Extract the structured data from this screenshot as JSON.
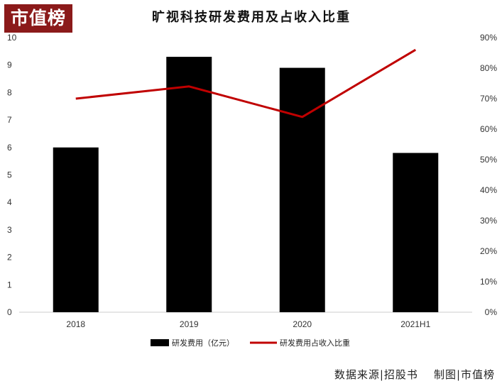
{
  "logo": {
    "text": "市值榜",
    "color": "#8b1a1a"
  },
  "source": {
    "data_source": "数据来源|招股书",
    "made_by": "制图|市值榜"
  },
  "colors": {
    "bar": "#000000",
    "line": "#c00000",
    "axis": "#cccccc"
  },
  "chart_data": {
    "type": "bar",
    "title": "旷视科技研发费用及占收入比重",
    "categories": [
      "2018",
      "2019",
      "2020",
      "2021H1"
    ],
    "series": [
      {
        "name": "研发费用（亿元）",
        "type": "bar",
        "axis": "left",
        "values": [
          6.0,
          9.3,
          8.9,
          5.8
        ]
      },
      {
        "name": "研发费用占收入比重",
        "type": "line",
        "axis": "right",
        "values": [
          0.7,
          0.74,
          0.64,
          0.86
        ]
      }
    ],
    "y_left": {
      "ylim": [
        0,
        10
      ],
      "ticks": [
        "0",
        "1",
        "2",
        "3",
        "4",
        "5",
        "6",
        "7",
        "8",
        "9",
        "10"
      ]
    },
    "y_right": {
      "ylim": [
        0,
        0.9
      ],
      "ticks": [
        "0%",
        "10%",
        "20%",
        "30%",
        "40%",
        "50%",
        "60%",
        "70%",
        "80%",
        "90%"
      ]
    },
    "grid": false,
    "legend_position": "bottom"
  }
}
